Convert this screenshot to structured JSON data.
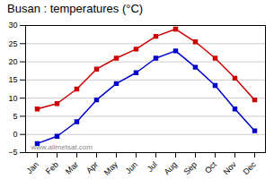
{
  "chart_data": {
    "type": "line",
    "title": "Busan : temperatures (°C)",
    "categories": [
      "Jan",
      "Feb",
      "Mar",
      "Apr",
      "May",
      "Jun",
      "Jul",
      "Aug",
      "Sep",
      "Oct",
      "Nov",
      "Dec"
    ],
    "series": [
      {
        "color": "#cc0000",
        "marker": "square",
        "values": [
          7,
          8.5,
          12.5,
          18,
          21,
          23.5,
          27,
          29,
          25.5,
          21,
          15.5,
          9.5
        ]
      },
      {
        "color": "#0000cc",
        "marker": "square",
        "values": [
          -2.5,
          -0.5,
          3.5,
          9.5,
          14,
          17,
          21,
          23,
          18.5,
          13.5,
          7,
          1
        ]
      }
    ],
    "ylim": [
      -5,
      30
    ],
    "yticks": [
      -5,
      0,
      5,
      10,
      15,
      20,
      25,
      30
    ],
    "grid": true,
    "annotations": [
      "www.allmetsat.com"
    ]
  }
}
